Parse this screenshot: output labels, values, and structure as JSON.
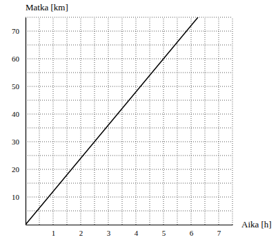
{
  "chart_data": {
    "type": "line",
    "x_label": "Aika [h]",
    "y_label": "Matka [km]",
    "x": [
      0,
      1,
      2,
      3,
      4,
      5,
      6,
      6.25
    ],
    "series": [
      {
        "color": "#000000",
        "values": [
          0,
          12,
          24,
          36,
          48,
          60,
          72,
          75
        ]
      }
    ],
    "xlim": [
      0,
      7.5
    ],
    "xticks": [
      1,
      2,
      3,
      4,
      5,
      6,
      7
    ],
    "ylim": [
      0,
      75
    ],
    "yticks": [
      10,
      20,
      30,
      40,
      50,
      60,
      70
    ],
    "grid": true
  }
}
